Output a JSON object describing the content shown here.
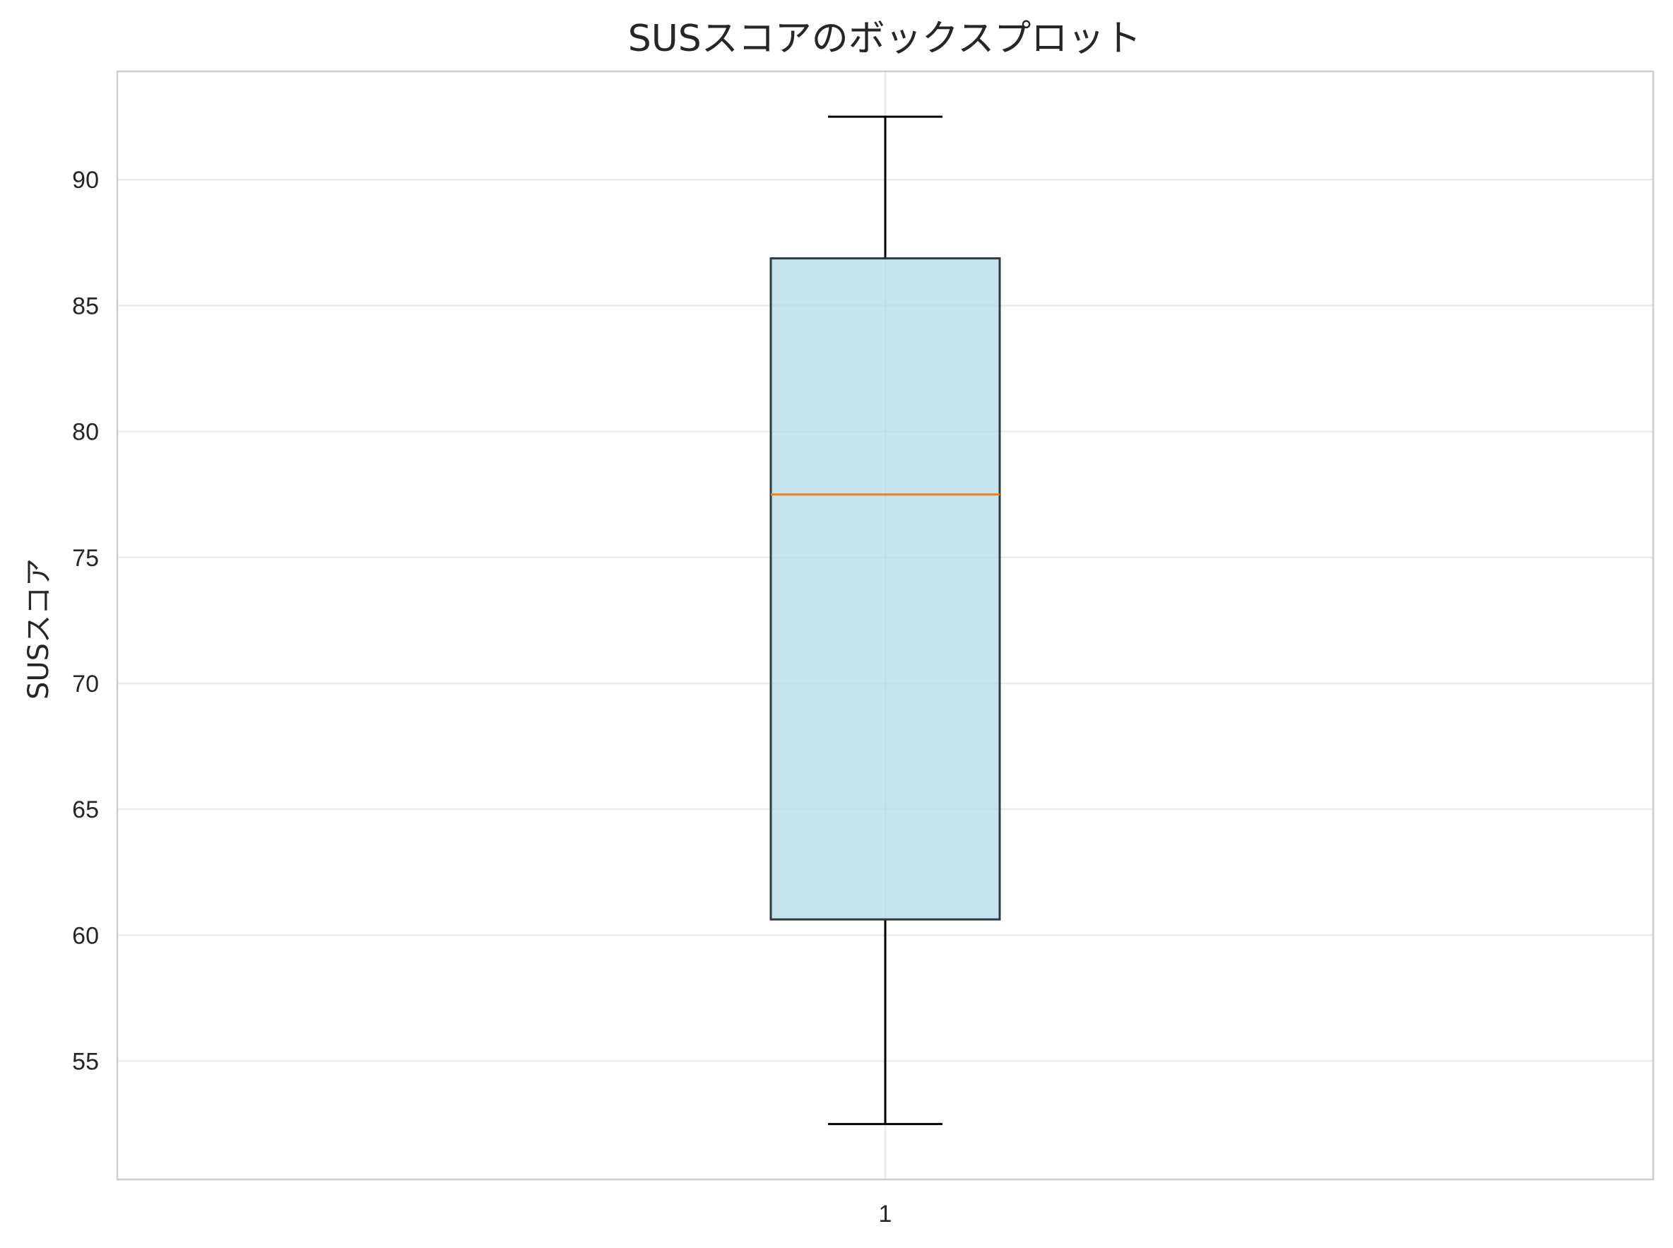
{
  "chart_data": {
    "type": "boxplot",
    "title": "SUSスコアのボックスプロット",
    "xlabel": "",
    "ylabel": "SUSスコア",
    "categories": [
      "1"
    ],
    "boxes": [
      {
        "category": "1",
        "whisker_low": 52.5,
        "q1": 60.625,
        "median": 77.5,
        "q3": 86.875,
        "whisker_high": 92.5
      }
    ],
    "ylim": [
      50.3,
      94.3
    ],
    "yticks": [
      55,
      60,
      65,
      70,
      75,
      80,
      85,
      90
    ],
    "grid": true,
    "colors": {
      "box_fill": "#add8e6",
      "box_edge": "#2f3b40",
      "median": "#e8822a",
      "whisker": "#000000",
      "grid": "#ebebeb",
      "spine": "#cccccc",
      "text": "#262626"
    }
  }
}
